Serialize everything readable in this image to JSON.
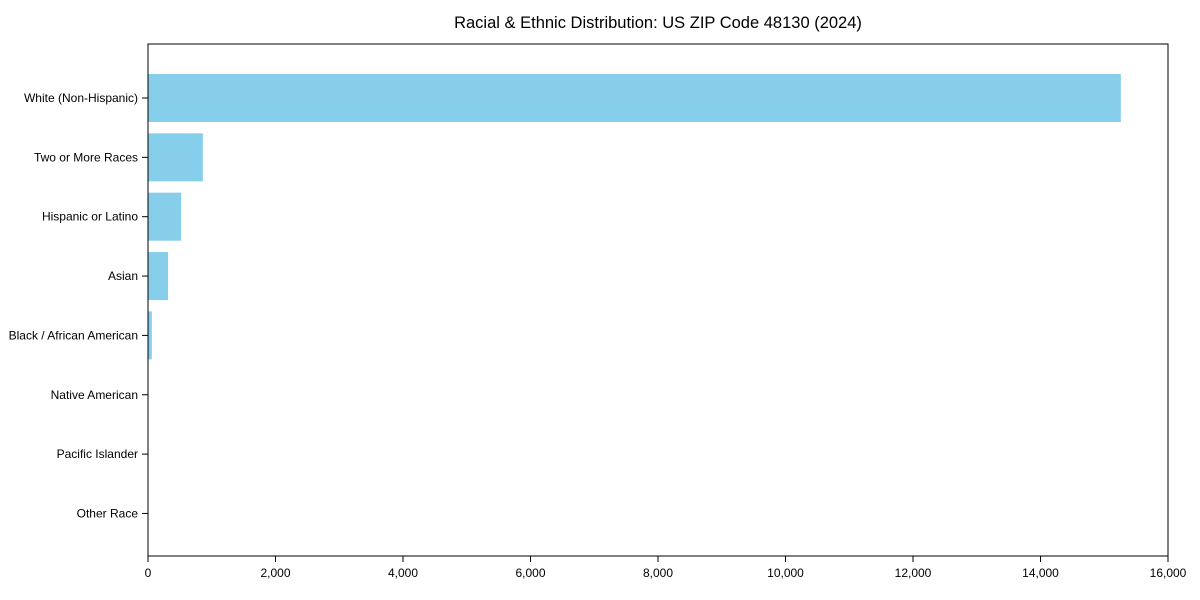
{
  "title": "Racial & Ethnic Distribution: US ZIP Code 48130 (2024)",
  "colors": {
    "bar": "#87CEEB",
    "axis": "#000000",
    "text": "#000000",
    "background": "#FFFFFF"
  },
  "chart_data": {
    "type": "bar",
    "orientation": "horizontal",
    "title": "Racial & Ethnic Distribution: US ZIP Code 48130 (2024)",
    "categories": [
      "White (Non-Hispanic)",
      "Two or More Races",
      "Hispanic or Latino",
      "Asian",
      "Black / African American",
      "Native American",
      "Pacific Islander",
      "Other Race"
    ],
    "values": [
      15260,
      860,
      520,
      315,
      60,
      0,
      0,
      0
    ],
    "xlabel": "",
    "ylabel": "",
    "xlim": [
      0,
      16000
    ],
    "x_ticks": [
      0,
      2000,
      4000,
      6000,
      8000,
      10000,
      12000,
      14000,
      16000
    ],
    "x_tick_labels": [
      "0",
      "2,000",
      "4,000",
      "6,000",
      "8,000",
      "10,000",
      "12,000",
      "14,000",
      "16,000"
    ],
    "grid": false,
    "legend": null
  }
}
